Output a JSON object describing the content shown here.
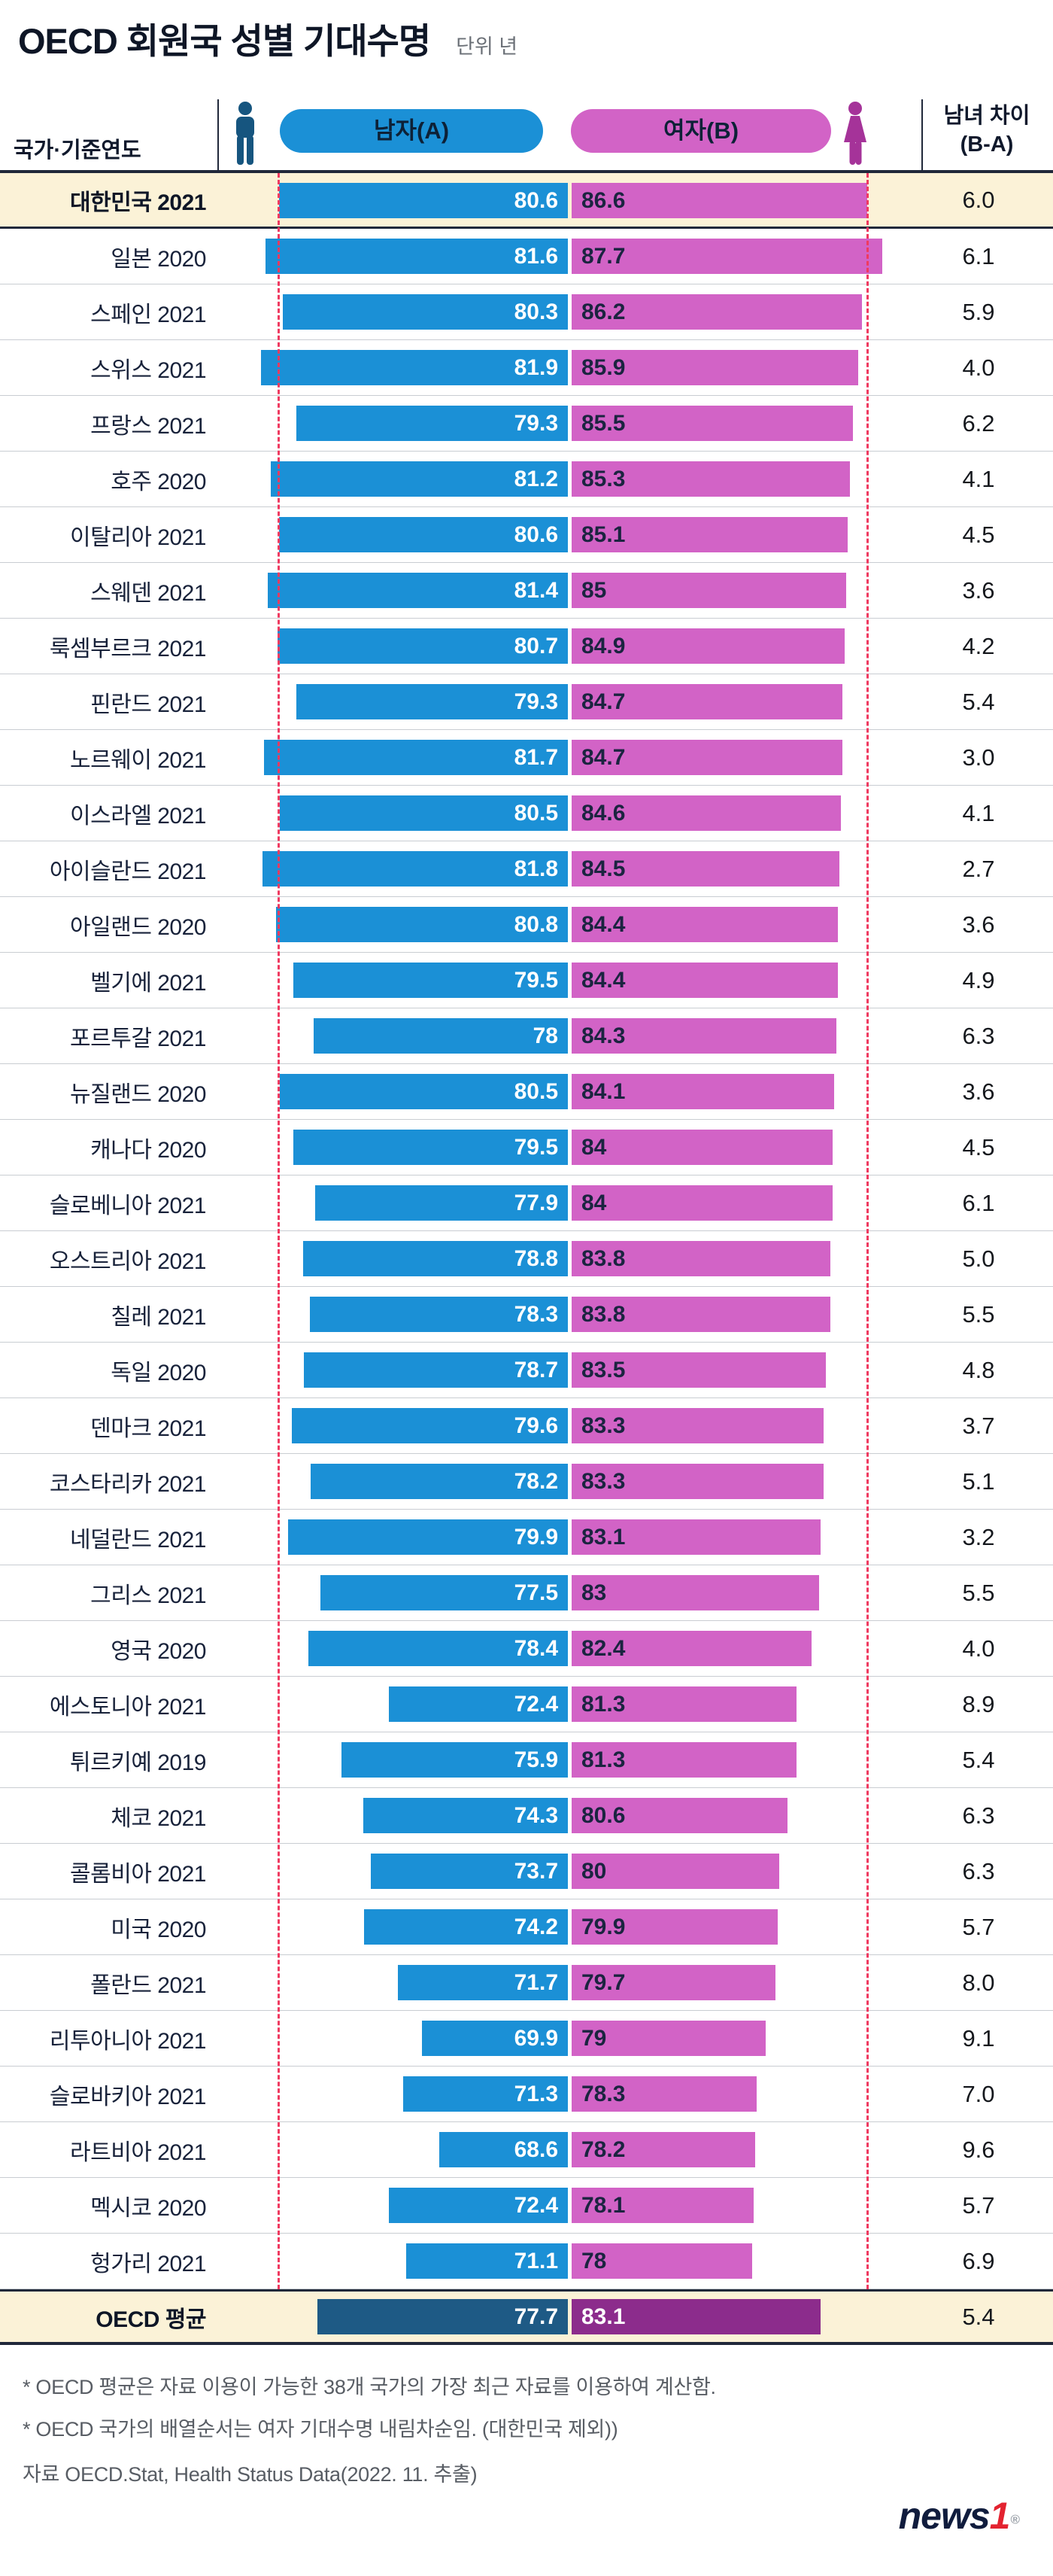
{
  "title": "OECD 회원국 성별 기대수명",
  "unit_label": "단위  년",
  "header": {
    "country_col": "국가·기준연도",
    "male": "남자(A)",
    "female": "여자(B)",
    "diff_line1": "남녀 차이",
    "diff_line2": "(B-A)"
  },
  "colors": {
    "male": "#1b90d6",
    "female": "#d263c6",
    "oecd_male": "#1e5a85",
    "oecd_female": "#8c2c8c",
    "highlight_bg": "#fbf2d7",
    "dash": "#ef3a60",
    "icon_male": "#16557f",
    "icon_female": "#a53399",
    "header_line": "#20283a"
  },
  "chart_data": {
    "type": "bar",
    "orientation": "horizontal",
    "title": "OECD 회원국 성별 기대수명",
    "unit": "년",
    "legend_position": "top",
    "series": [
      {
        "name": "남자(A)",
        "color": "#1b90d6"
      },
      {
        "name": "여자(B)",
        "color": "#d263c6"
      }
    ],
    "rows": [
      {
        "country": "대한민국 2021",
        "male": "80.6",
        "female": "86.6",
        "diff": "6.0",
        "highlight": true
      },
      {
        "country": "일본 2020",
        "male": "81.6",
        "female": "87.7",
        "diff": "6.1"
      },
      {
        "country": "스페인 2021",
        "male": "80.3",
        "female": "86.2",
        "diff": "5.9"
      },
      {
        "country": "스위스 2021",
        "male": "81.9",
        "female": "85.9",
        "diff": "4.0"
      },
      {
        "country": "프랑스 2021",
        "male": "79.3",
        "female": "85.5",
        "diff": "6.2"
      },
      {
        "country": "호주 2020",
        "male": "81.2",
        "female": "85.3",
        "diff": "4.1"
      },
      {
        "country": "이탈리아 2021",
        "male": "80.6",
        "female": "85.1",
        "diff": "4.5"
      },
      {
        "country": "스웨덴 2021",
        "male": "81.4",
        "female": "85",
        "diff": "3.6"
      },
      {
        "country": "룩셈부르크 2021",
        "male": "80.7",
        "female": "84.9",
        "diff": "4.2"
      },
      {
        "country": "핀란드 2021",
        "male": "79.3",
        "female": "84.7",
        "diff": "5.4"
      },
      {
        "country": "노르웨이 2021",
        "male": "81.7",
        "female": "84.7",
        "diff": "3.0"
      },
      {
        "country": "이스라엘 2021",
        "male": "80.5",
        "female": "84.6",
        "diff": "4.1"
      },
      {
        "country": "아이슬란드 2021",
        "male": "81.8",
        "female": "84.5",
        "diff": "2.7"
      },
      {
        "country": "아일랜드 2020",
        "male": "80.8",
        "female": "84.4",
        "diff": "3.6"
      },
      {
        "country": "벨기에 2021",
        "male": "79.5",
        "female": "84.4",
        "diff": "4.9"
      },
      {
        "country": "포르투갈 2021",
        "male": "78",
        "female": "84.3",
        "diff": "6.3"
      },
      {
        "country": "뉴질랜드 2020",
        "male": "80.5",
        "female": "84.1",
        "diff": "3.6"
      },
      {
        "country": "캐나다 2020",
        "male": "79.5",
        "female": "84",
        "diff": "4.5"
      },
      {
        "country": "슬로베니아 2021",
        "male": "77.9",
        "female": "84",
        "diff": "6.1"
      },
      {
        "country": "오스트리아 2021",
        "male": "78.8",
        "female": "83.8",
        "diff": "5.0"
      },
      {
        "country": "칠레 2021",
        "male": "78.3",
        "female": "83.8",
        "diff": "5.5"
      },
      {
        "country": "독일 2020",
        "male": "78.7",
        "female": "83.5",
        "diff": "4.8"
      },
      {
        "country": "덴마크 2021",
        "male": "79.6",
        "female": "83.3",
        "diff": "3.7"
      },
      {
        "country": "코스타리카 2021",
        "male": "78.2",
        "female": "83.3",
        "diff": "5.1"
      },
      {
        "country": "네덜란드 2021",
        "male": "79.9",
        "female": "83.1",
        "diff": "3.2"
      },
      {
        "country": "그리스 2021",
        "male": "77.5",
        "female": "83",
        "diff": "5.5"
      },
      {
        "country": "영국 2020",
        "male": "78.4",
        "female": "82.4",
        "diff": "4.0"
      },
      {
        "country": "에스토니아 2021",
        "male": "72.4",
        "female": "81.3",
        "diff": "8.9"
      },
      {
        "country": "튀르키예 2019",
        "male": "75.9",
        "female": "81.3",
        "diff": "5.4"
      },
      {
        "country": "체코 2021",
        "male": "74.3",
        "female": "80.6",
        "diff": "6.3"
      },
      {
        "country": "콜롬비아 2021",
        "male": "73.7",
        "female": "80",
        "diff": "6.3"
      },
      {
        "country": "미국 2020",
        "male": "74.2",
        "female": "79.9",
        "diff": "5.7"
      },
      {
        "country": "폴란드 2021",
        "male": "71.7",
        "female": "79.7",
        "diff": "8.0"
      },
      {
        "country": "리투아니아 2021",
        "male": "69.9",
        "female": "79",
        "diff": "9.1"
      },
      {
        "country": "슬로바키아 2021",
        "male": "71.3",
        "female": "78.3",
        "diff": "7.0"
      },
      {
        "country": "라트비아 2021",
        "male": "68.6",
        "female": "78.2",
        "diff": "9.6"
      },
      {
        "country": "멕시코 2020",
        "male": "72.4",
        "female": "78.1",
        "diff": "5.7"
      },
      {
        "country": "헝가리 2021",
        "male": "71.1",
        "female": "78",
        "diff": "6.9"
      },
      {
        "country": "OECD 평균",
        "male": "77.7",
        "female": "83.1",
        "diff": "5.4",
        "oecd": true
      }
    ]
  },
  "footnotes": [
    "* OECD 평균은 자료 이용이 가능한 38개 국가의 가장 최근 자료를 이용하여 계산함.",
    "* OECD 국가의 배열순서는 여자 기대수명 내림차순임. (대한민국 제외))"
  ],
  "source": "자료  OECD.Stat, Health Status Data(2022. 11. 추출)",
  "logo": {
    "news": "news",
    "one": "1",
    "reg": "®"
  }
}
